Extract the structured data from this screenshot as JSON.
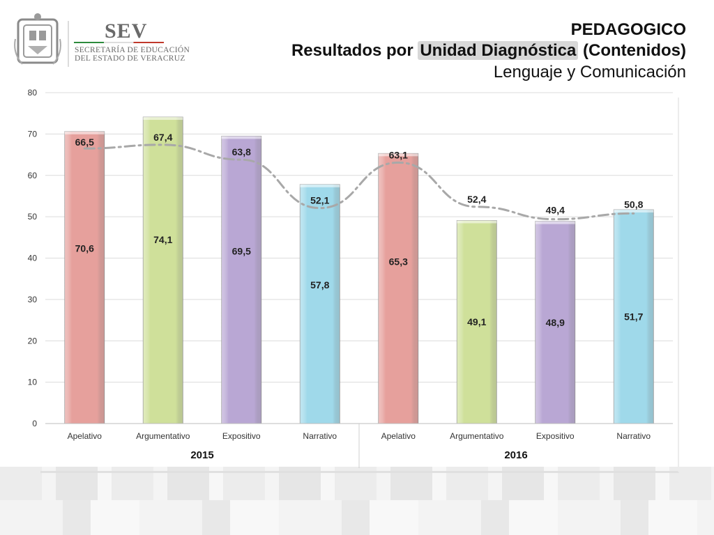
{
  "header": {
    "logo_name": "SEV",
    "logo_line1": "SECRETARÍA DE EDUCACIÓN",
    "logo_line2": "DEL ESTADO DE VERACRUZ",
    "title_line1": "PEDAGOGICO",
    "title_line2_prefix": "Resultados por ",
    "title_line2_highlight": "Unidad Diagnóstica",
    "title_line2_suffix": " (Contenidos)",
    "title_line3": "Lenguaje y Comunicación"
  },
  "chart_data": {
    "type": "bar",
    "categories": [
      "Apelativo",
      "Argumentativo",
      "Expositivo",
      "Narrativo",
      "Apelativo",
      "Argumentativo",
      "Expositivo",
      "Narrativo"
    ],
    "groups": [
      {
        "label": "2015",
        "start": 0,
        "end": 3
      },
      {
        "label": "2016",
        "start": 4,
        "end": 7
      }
    ],
    "series": [
      {
        "type": "bar",
        "values": [
          70.6,
          74.1,
          69.5,
          57.8,
          65.3,
          49.1,
          48.9,
          51.7
        ],
        "labels": [
          "70,6",
          "74,1",
          "69,5",
          "57,8",
          "65,3",
          "49,1",
          "48,9",
          "51,7"
        ]
      },
      {
        "type": "line",
        "values": [
          66.5,
          67.4,
          63.8,
          52.1,
          63.1,
          52.4,
          49.4,
          50.8
        ],
        "labels": [
          "66,5",
          "67,4",
          "63,8",
          "52,1",
          "63,1",
          "52,4",
          "49,4",
          "50,8"
        ]
      }
    ],
    "bar_colors": [
      "#e6a09c",
      "#cfe09a",
      "#b9a7d4",
      "#9fd9ea",
      "#e6a09c",
      "#cfe09a",
      "#b9a7d4",
      "#9fd9ea"
    ],
    "line_color": "#a8a8a8",
    "yticks": [
      "0",
      "10",
      "20",
      "30",
      "40",
      "50",
      "60",
      "70",
      "80"
    ],
    "ylim": [
      0,
      80
    ],
    "grid": true,
    "legend": "none"
  }
}
